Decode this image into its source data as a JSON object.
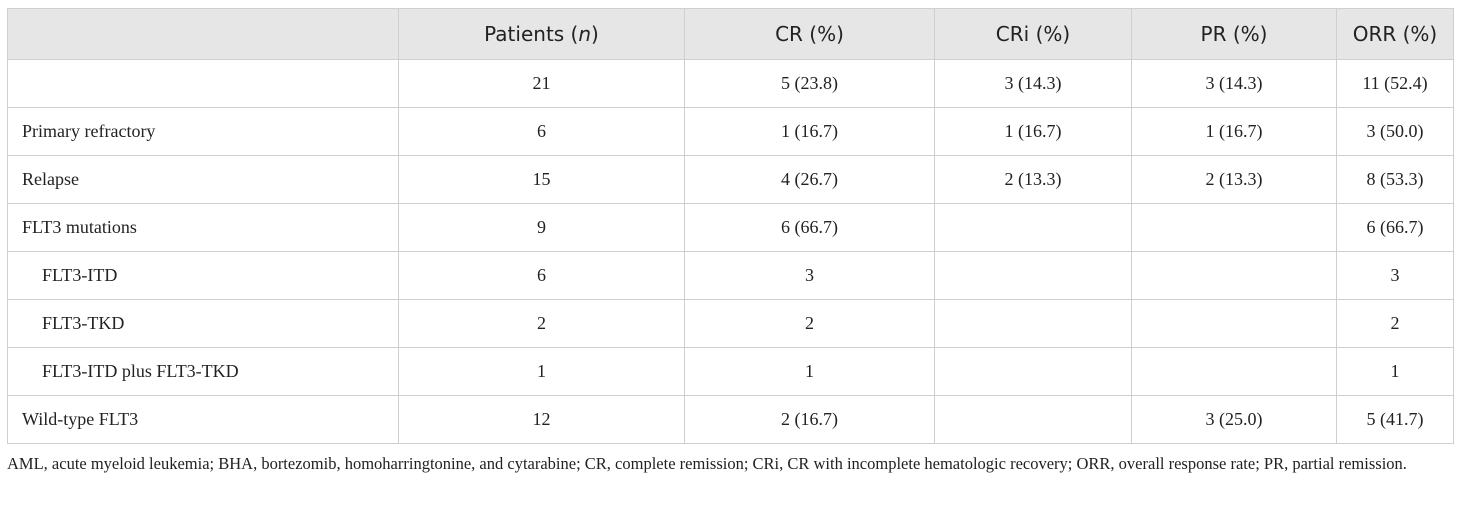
{
  "header": {
    "col0": "",
    "patients_label": "Patients (",
    "patients_n": "n",
    "patients_close": ")",
    "cr": "CR (%)",
    "cri": "CRi (%)",
    "pr": "PR (%)",
    "orr": "ORR (%)"
  },
  "rows": [
    {
      "label": "",
      "patients": "21",
      "cr": "5 (23.8)",
      "cri": "3 (14.3)",
      "pr": "3 (14.3)",
      "orr": "11 (52.4)"
    },
    {
      "label": "Primary refractory",
      "patients": "6",
      "cr": "1 (16.7)",
      "cri": "1 (16.7)",
      "pr": "1 (16.7)",
      "orr": "3 (50.0)"
    },
    {
      "label": "Relapse",
      "patients": "15",
      "cr": "4 (26.7)",
      "cri": "2 (13.3)",
      "pr": "2 (13.3)",
      "orr": "8 (53.3)"
    },
    {
      "label": "FLT3 mutations",
      "patients": "9",
      "cr": "6 (66.7)",
      "cri": "",
      "pr": "",
      "orr": "6 (66.7)"
    },
    {
      "label": "FLT3-ITD",
      "patients": "6",
      "cr": "3",
      "cri": "",
      "pr": "",
      "orr": "3"
    },
    {
      "label": "FLT3-TKD",
      "patients": "2",
      "cr": "2",
      "cri": "",
      "pr": "",
      "orr": "2"
    },
    {
      "label": "FLT3-ITD plus FLT3-TKD",
      "patients": "1",
      "cr": "1",
      "cri": "",
      "pr": "",
      "orr": "1"
    },
    {
      "label": "Wild-type FLT3",
      "patients": "12",
      "cr": "2 (16.7)",
      "cri": "",
      "pr": "3 (25.0)",
      "orr": "5 (41.7)"
    }
  ],
  "footnote": "AML, acute myeloid leukemia; BHA, bortezomib, homoharringtonine, and cytarabine; CR, complete remission; CRi, CR with incomplete hematologic recovery; ORR, overall response rate; PR, partial remission."
}
